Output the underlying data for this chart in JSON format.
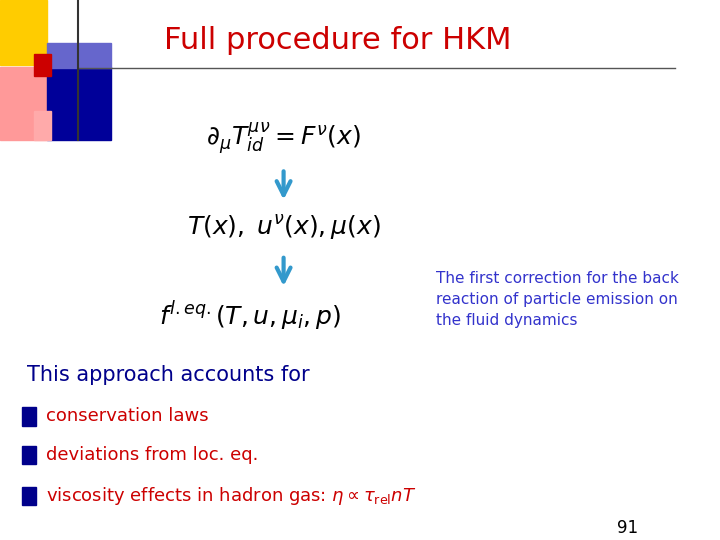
{
  "title": "Full procedure for HKM",
  "title_color": "#cc0000",
  "title_fontsize": 22,
  "bg_color": "#ffffff",
  "eq1": "$\\partial_{\\mu}T_{id}^{\\mu\\nu} = F^{\\nu}(x)$",
  "eq2": "$T(x),\\; u^{\\nu}(x), \\mu(x)$",
  "eq3": "$f^{l.eq.}(T, u, \\mu_i, p)$",
  "eq_color": "#000000",
  "eq_fontsize": 18,
  "arrow_color": "#3399cc",
  "annotation_text": "The first correction for the back\nreaction of particle emission on\nthe fluid dynamics",
  "annotation_color": "#3333cc",
  "annotation_fontsize": 11,
  "bullet_color": "#00008b",
  "bullet_text_color": "#cc0000",
  "bullet_texts": [
    "conservation laws",
    "deviations from loc. eq.",
    "viscosity effects in hadron gas: $\\eta \\propto \\tau_{\\mathrm{rel}} n T$"
  ],
  "approach_text": "This approach accounts for",
  "approach_color": "#00008b",
  "approach_fontsize": 15,
  "page_number": "91",
  "page_color": "#000000",
  "header_line_color": "#555555",
  "corner_colors": {
    "yellow": "#ffcc00",
    "pink": "#ff9999",
    "blue_dark": "#000099",
    "blue_light": "#6666cc",
    "red_square": "#cc0000",
    "pink2": "#ffaaaa"
  }
}
